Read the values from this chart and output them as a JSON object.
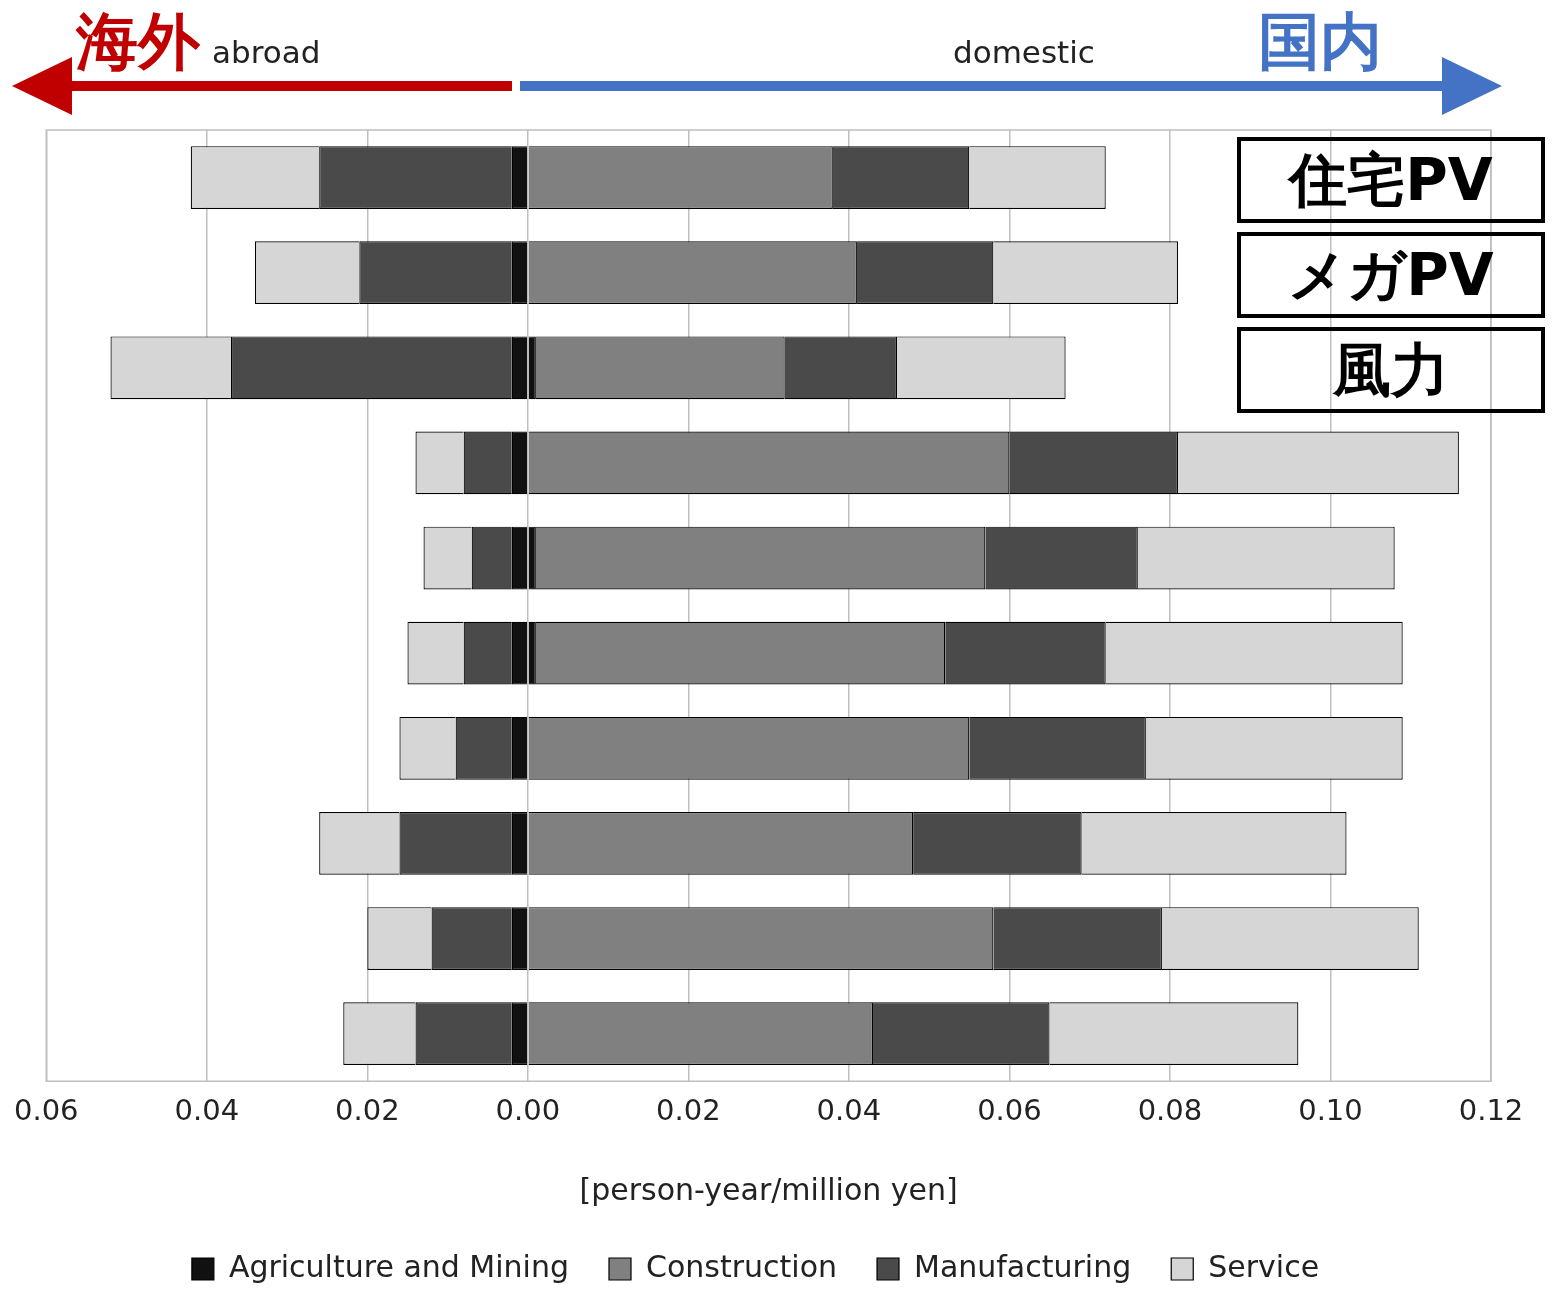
{
  "chart_data": {
    "type": "bar",
    "orientation": "horizontal",
    "stacked": true,
    "xlabel": "[person-year/million yen]",
    "annotations": [
      "海外",
      "abroad",
      "domestic",
      "国内"
    ],
    "categories": [
      "住宅PV",
      "メガPV",
      "風力",
      null,
      null,
      null,
      null,
      null,
      null,
      null
    ],
    "series": [
      {
        "name": "Agriculture and Mining",
        "color": "#111111",
        "values": [
          0,
          0,
          0.001,
          0,
          0.001,
          0.001,
          0,
          0,
          0,
          0
        ]
      },
      {
        "name": "Construction",
        "color": "#808080",
        "values": [
          0.038,
          0.041,
          0.031,
          0.06,
          0.056,
          0.051,
          0.055,
          0.048,
          0.058,
          0.043
        ]
      },
      {
        "name": "Manufacturing",
        "color": "#4a4a4a",
        "values": [
          0.017,
          0.017,
          0.014,
          0.021,
          0.019,
          0.02,
          0.022,
          0.021,
          0.021,
          0.022
        ]
      },
      {
        "name": "Service",
        "color": "#d6d6d6",
        "values": [
          0.017,
          0.023,
          0.021,
          0.035,
          0.032,
          0.037,
          0.032,
          0.033,
          0.032,
          0.031
        ]
      },
      {
        "color": "#111111",
        "values": [
          -0.002,
          -0.002,
          -0.002,
          -0.002,
          -0.002,
          -0.002,
          -0.002,
          -0.002,
          -0.002,
          -0.002
        ]
      },
      {
        "color": "#4a4a4a",
        "values": [
          -0.024,
          -0.019,
          -0.035,
          -0.006,
          -0.005,
          -0.006,
          -0.007,
          -0.014,
          -0.01,
          -0.012
        ]
      },
      {
        "color": "#d6d6d6",
        "values": [
          -0.016,
          -0.013,
          -0.015,
          -0.006,
          -0.006,
          -0.007,
          -0.007,
          -0.01,
          -0.008,
          -0.009
        ]
      }
    ],
    "xlim": [
      -0.06,
      0.12
    ],
    "xticks": [
      {
        "value": -0.06,
        "label": "0.06"
      },
      {
        "value": -0.04,
        "label": "0.04"
      },
      {
        "value": -0.02,
        "label": "0.02"
      },
      {
        "value": 0,
        "label": "0.00"
      },
      {
        "value": 0.02,
        "label": "0.02"
      },
      {
        "value": 0.04,
        "label": "0.04"
      },
      {
        "value": 0.06,
        "label": "0.06"
      },
      {
        "value": 0.08,
        "label": "0.08"
      },
      {
        "value": 0.1,
        "label": "0.10"
      },
      {
        "value": 0.12,
        "label": "0.12"
      }
    ],
    "grid": "x",
    "legend": "bottom"
  }
}
